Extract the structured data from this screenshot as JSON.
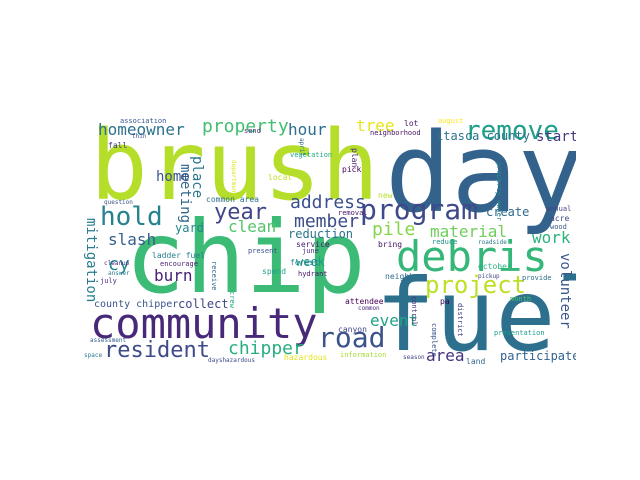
{
  "word_cloud": {
    "background": "#ffffff",
    "words": [
      {
        "text": "brush",
        "color": "#b5de2b"
      },
      {
        "text": "day",
        "color": "#33638d"
      },
      {
        "text": "chip",
        "color": "#3bbb75"
      },
      {
        "text": "fuel",
        "color": "#2d708e"
      },
      {
        "text": "community",
        "color": "#482878"
      },
      {
        "text": "debris",
        "color": "#35b779"
      },
      {
        "text": "program",
        "color": "#3e4989"
      },
      {
        "text": "remove",
        "color": "#1f9e89"
      },
      {
        "text": "road",
        "color": "#3b528b"
      },
      {
        "text": "project",
        "color": "#bddf26"
      },
      {
        "text": "resident",
        "color": "#3e4a89"
      },
      {
        "text": "hold",
        "color": "#26828e"
      },
      {
        "text": "year",
        "color": "#3f4788"
      },
      {
        "text": "property",
        "color": "#42be71"
      },
      {
        "text": "homeowner",
        "color": "#2c728e"
      },
      {
        "text": "address",
        "color": "#3b518b"
      },
      {
        "text": "chipper",
        "color": "#29af7f"
      },
      {
        "text": "pile",
        "color": "#86d549"
      },
      {
        "text": "material",
        "color": "#6ece58"
      },
      {
        "text": "work",
        "color": "#2db27d"
      },
      {
        "text": "tree",
        "color": "#e7e419"
      },
      {
        "text": "hour",
        "color": "#2e6e8e"
      },
      {
        "text": "member",
        "color": "#3d4d8a"
      },
      {
        "text": "clean",
        "color": "#54c568"
      },
      {
        "text": "mitigation",
        "color": "#287c8e"
      },
      {
        "text": "meeting",
        "color": "#31668e"
      },
      {
        "text": "place",
        "color": "#2a788e"
      },
      {
        "text": "home",
        "color": "#3b528b"
      },
      {
        "text": "slash",
        "color": "#355f8d"
      },
      {
        "text": "burn",
        "color": "#482071"
      },
      {
        "text": "cy",
        "color": "#23898e"
      },
      {
        "text": "yard",
        "color": "#25848e"
      },
      {
        "text": "reduction",
        "color": "#2c738e"
      },
      {
        "text": "event",
        "color": "#20a386"
      },
      {
        "text": "week",
        "color": "#1e9b8a"
      },
      {
        "text": "area",
        "color": "#46327e"
      },
      {
        "text": "volunteer",
        "color": "#39568c"
      },
      {
        "text": "start",
        "color": "#443a83"
      },
      {
        "text": "create",
        "color": "#31688e"
      },
      {
        "text": "itasca county",
        "color": "#2c728e"
      },
      {
        "text": "participate",
        "color": "#33638d"
      },
      {
        "text": "collect",
        "color": "#3f4788"
      },
      {
        "text": "county chipper",
        "color": "#3a548c"
      },
      {
        "text": "association",
        "color": "#38598c"
      },
      {
        "text": "thin",
        "color": "#3c508b"
      },
      {
        "text": "send",
        "color": "#472d7b"
      },
      {
        "text": "fall",
        "color": "#453781"
      },
      {
        "text": "question",
        "color": "#39568c"
      },
      {
        "text": "common area",
        "color": "#2d708e"
      },
      {
        "text": "department",
        "color": "#e2e418"
      },
      {
        "text": "local",
        "color": "#c2df23"
      },
      {
        "text": "vegetation",
        "color": "#22a884"
      },
      {
        "text": "april",
        "color": "#31668e"
      },
      {
        "text": "plan",
        "color": "#482878"
      },
      {
        "text": "pick",
        "color": "#440154"
      },
      {
        "text": "neighborhood",
        "color": "#471365"
      },
      {
        "text": "lot",
        "color": "#48186a"
      },
      {
        "text": "august",
        "color": "#fde725"
      },
      {
        "text": "property owner",
        "color": "#25848e"
      },
      {
        "text": "annual",
        "color": "#424086"
      },
      {
        "text": "acre",
        "color": "#3e4989"
      },
      {
        "text": "wood",
        "color": "#38598c"
      },
      {
        "text": "new",
        "color": "#b8de29"
      },
      {
        "text": "removal",
        "color": "#481668"
      },
      {
        "text": "october",
        "color": "#2ab07f"
      },
      {
        "text": "roadside",
        "color": "#2a788e"
      },
      {
        "text": "reduce",
        "color": "#21918c"
      },
      {
        "text": "bring",
        "color": "#471063"
      },
      {
        "text": "service",
        "color": "#481b6d"
      },
      {
        "text": "june",
        "color": "#46337f"
      },
      {
        "text": "forest",
        "color": "#26828e"
      },
      {
        "text": "hydrant",
        "color": "#481769"
      },
      {
        "text": "present",
        "color": "#3b528b"
      },
      {
        "text": "encourage",
        "color": "#481f70"
      },
      {
        "text": "ladder fuel",
        "color": "#277f8e"
      },
      {
        "text": "cleanup",
        "color": "#472c7a"
      },
      {
        "text": "receive",
        "color": "#306a8e"
      },
      {
        "text": "crew",
        "color": "#25ab82"
      },
      {
        "text": "spend",
        "color": "#1fa088"
      },
      {
        "text": "answer",
        "color": "#29798e"
      },
      {
        "text": "july",
        "color": "#472f7d"
      },
      {
        "text": "assessment",
        "color": "#35608d"
      },
      {
        "text": "neighbor",
        "color": "#2e6e8e"
      },
      {
        "text": "pickup",
        "color": "#414487"
      },
      {
        "text": "provide",
        "color": "#2c738e"
      },
      {
        "text": "month",
        "color": "#4ac16d"
      },
      {
        "text": "attendee",
        "color": "#440154"
      },
      {
        "text": "common",
        "color": "#472a7a"
      },
      {
        "text": "canyon",
        "color": "#414487"
      },
      {
        "text": "control",
        "color": "#46337f"
      },
      {
        "text": "pa",
        "color": "#440154"
      },
      {
        "text": "district",
        "color": "#453781"
      },
      {
        "text": "complete",
        "color": "#3b518b"
      },
      {
        "text": "land",
        "color": "#31688e"
      },
      {
        "text": "season",
        "color": "#3f4788"
      },
      {
        "text": "presentation",
        "color": "#1f9e89"
      },
      {
        "text": "space",
        "color": "#2a788e"
      },
      {
        "text": "dayshazardous",
        "color": "#3e4989"
      },
      {
        "text": "hazardous",
        "color": "#e7e419"
      },
      {
        "text": "information",
        "color": "#a8db34"
      }
    ]
  }
}
